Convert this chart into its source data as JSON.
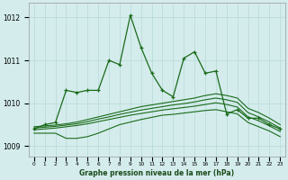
{
  "title": "Graphe pression niveau de la mer (hPa)",
  "background_color": "#d4ecec",
  "grid_color": "#b8d8d8",
  "line_color": "#1a6b1a",
  "ylim": [
    1008.75,
    1012.35
  ],
  "yticks": [
    1009,
    1010,
    1011,
    1012
  ],
  "xlim": [
    -0.5,
    23.5
  ],
  "series_main": [
    1009.4,
    1009.5,
    1009.55,
    1010.3,
    1010.25,
    1010.3,
    1010.3,
    1011.0,
    1010.9,
    1012.05,
    1011.3,
    1010.7,
    1010.3,
    1010.15,
    1011.05,
    1011.2,
    1010.7,
    1010.75,
    1009.75,
    1009.85,
    1009.65,
    1009.65,
    1009.5,
    1009.4
  ],
  "series_b1": [
    1009.45,
    1009.47,
    1009.49,
    1009.52,
    1009.56,
    1009.62,
    1009.68,
    1009.74,
    1009.8,
    1009.86,
    1009.92,
    1009.96,
    1010.0,
    1010.04,
    1010.08,
    1010.12,
    1010.18,
    1010.22,
    1010.18,
    1010.12,
    1009.88,
    1009.78,
    1009.65,
    1009.5
  ],
  "series_b2": [
    1009.42,
    1009.44,
    1009.46,
    1009.49,
    1009.52,
    1009.57,
    1009.63,
    1009.68,
    1009.74,
    1009.79,
    1009.84,
    1009.88,
    1009.92,
    1009.96,
    1009.99,
    1010.03,
    1010.08,
    1010.12,
    1010.08,
    1010.02,
    1009.78,
    1009.68,
    1009.56,
    1009.42
  ],
  "series_b3": [
    1009.38,
    1009.4,
    1009.42,
    1009.45,
    1009.48,
    1009.52,
    1009.57,
    1009.62,
    1009.67,
    1009.72,
    1009.76,
    1009.8,
    1009.84,
    1009.87,
    1009.9,
    1009.93,
    1009.97,
    1010.01,
    1009.97,
    1009.91,
    1009.68,
    1009.59,
    1009.47,
    1009.34
  ],
  "series_b4": [
    1009.3,
    1009.3,
    1009.3,
    1009.18,
    1009.18,
    1009.22,
    1009.3,
    1009.4,
    1009.5,
    1009.56,
    1009.62,
    1009.67,
    1009.72,
    1009.74,
    1009.77,
    1009.8,
    1009.83,
    1009.85,
    1009.8,
    1009.75,
    1009.55,
    1009.45,
    1009.35,
    1009.22
  ]
}
